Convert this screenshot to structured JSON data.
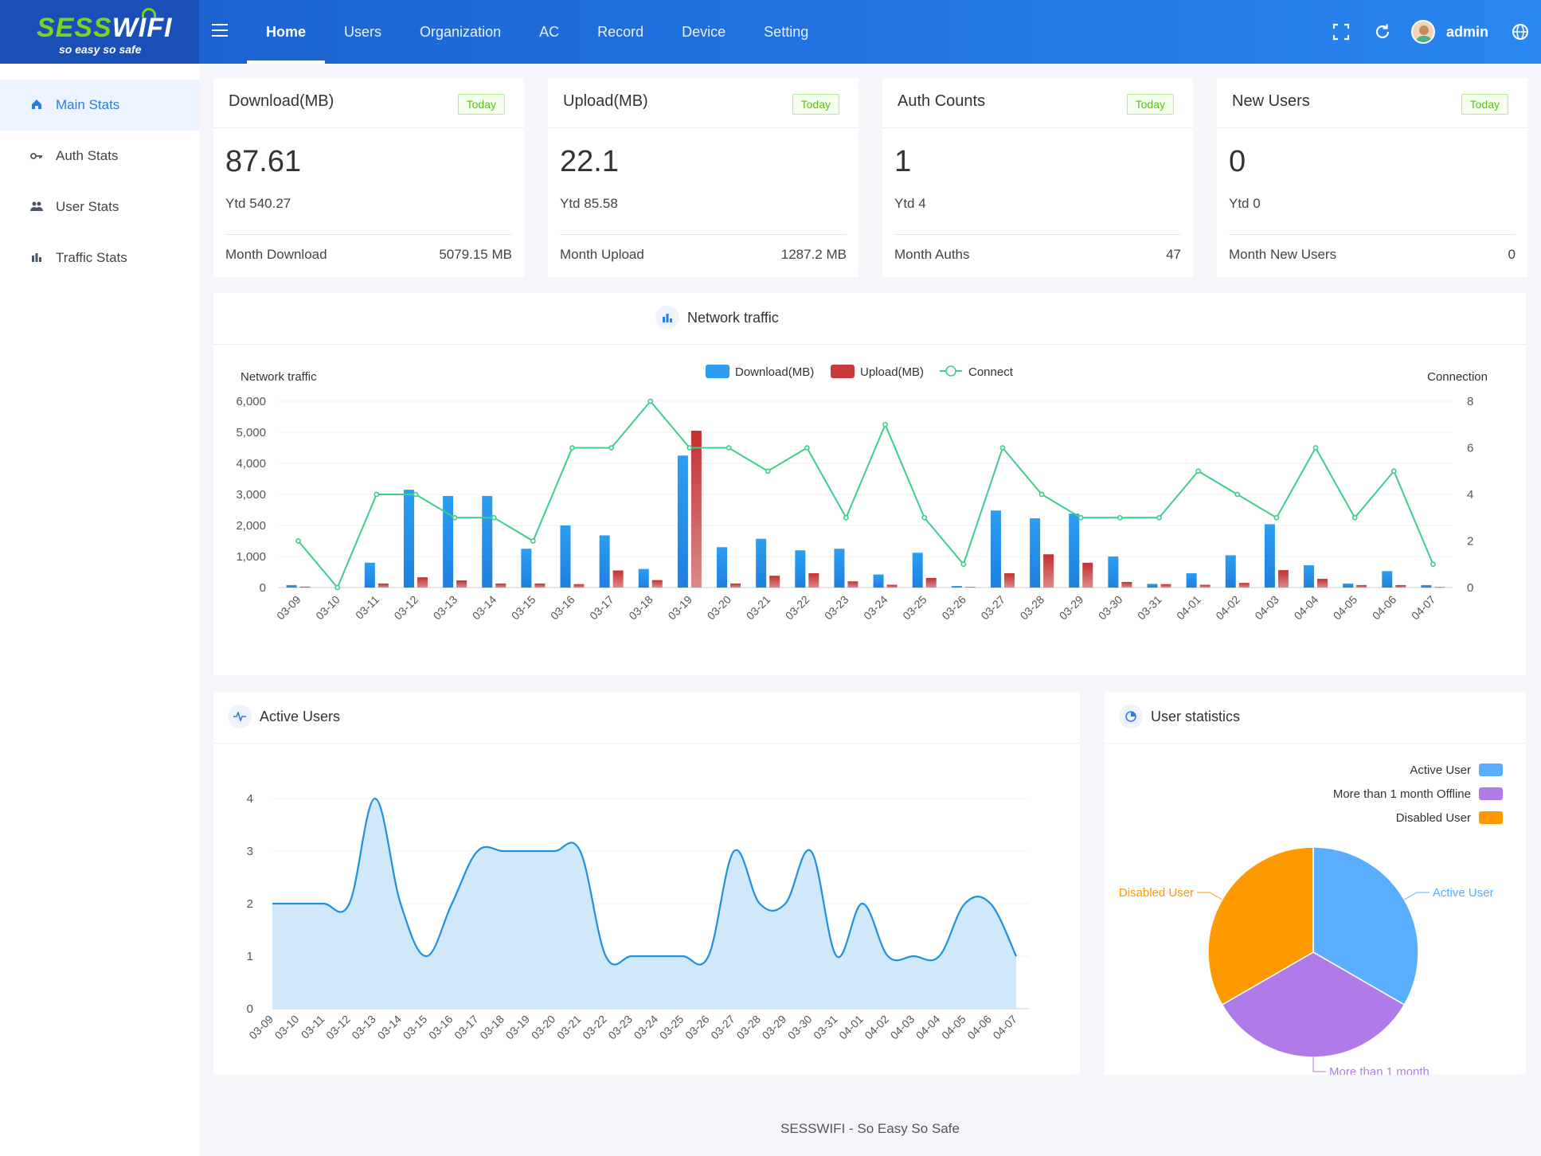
{
  "header": {
    "brand_part1": "SESS",
    "brand_part2": "WIFI",
    "tagline": "so easy so safe",
    "nav": [
      "Home",
      "Users",
      "Organization",
      "AC",
      "Record",
      "Device",
      "Setting"
    ],
    "active_nav": "Home",
    "username": "admin"
  },
  "sidebar": {
    "items": [
      {
        "label": "Main Stats",
        "icon": "home-icon",
        "active": true
      },
      {
        "label": "Auth Stats",
        "icon": "key-icon",
        "active": false
      },
      {
        "label": "User Stats",
        "icon": "users-icon",
        "active": false
      },
      {
        "label": "Traffic Stats",
        "icon": "bar-chart-icon",
        "active": false
      }
    ]
  },
  "stats": [
    {
      "title": "Download(MB)",
      "badge": "Today",
      "value": "87.61",
      "ytd": "Ytd 540.27",
      "month_label": "Month Download",
      "month_value": "5079.15 MB"
    },
    {
      "title": "Upload(MB)",
      "badge": "Today",
      "value": "22.1",
      "ytd": "Ytd 85.58",
      "month_label": "Month Upload",
      "month_value": "1287.2 MB"
    },
    {
      "title": "Auth Counts",
      "badge": "Today",
      "value": "1",
      "ytd": "Ytd 4",
      "month_label": "Month Auths",
      "month_value": "47"
    },
    {
      "title": "New Users",
      "badge": "Today",
      "value": "0",
      "ytd": "Ytd 0",
      "month_label": "Month New Users",
      "month_value": "0"
    }
  ],
  "traffic_panel": {
    "title": "Network traffic"
  },
  "active_panel": {
    "title": "Active Users"
  },
  "user_panel": {
    "title": "User statistics"
  },
  "footer": "SESSWIFI - So Easy So Safe",
  "colors": {
    "download": "#2e9cf0",
    "upload": "#c9383a",
    "connect": "#3ccf8a",
    "active_area": "#d1e8fa",
    "active_line": "#1f8fe0",
    "pie_active": "#5aaeff",
    "pie_offline": "#b07be8",
    "pie_disabled": "#ff9900"
  },
  "chart_data": [
    {
      "type": "bar",
      "title": "",
      "left_axis_label": "Network traffic",
      "right_axis_label": "Connection",
      "ylim": [
        0,
        6000
      ],
      "y2lim": [
        0,
        8
      ],
      "yticks": [
        0,
        1000,
        2000,
        3000,
        4000,
        5000,
        6000
      ],
      "y2ticks": [
        0,
        2,
        4,
        6,
        8
      ],
      "legend_position": "top-center",
      "categories": [
        "03-09",
        "03-10",
        "03-11",
        "03-12",
        "03-13",
        "03-14",
        "03-15",
        "03-16",
        "03-17",
        "03-18",
        "03-19",
        "03-20",
        "03-21",
        "03-22",
        "03-23",
        "03-24",
        "03-25",
        "03-26",
        "03-27",
        "03-28",
        "03-29",
        "03-30",
        "03-31",
        "04-01",
        "04-02",
        "04-03",
        "04-04",
        "04-05",
        "04-06",
        "04-07"
      ],
      "series": [
        {
          "name": "Download(MB)",
          "kind": "bar",
          "axis": "left",
          "values": [
            80,
            0,
            800,
            3150,
            2950,
            2950,
            1250,
            2000,
            1680,
            600,
            4250,
            1300,
            1570,
            1200,
            1250,
            420,
            1120,
            50,
            2480,
            2230,
            2380,
            1000,
            120,
            460,
            1040,
            2040,
            720,
            130,
            530,
            80
          ]
        },
        {
          "name": "Upload(MB)",
          "kind": "bar",
          "axis": "left",
          "values": [
            30,
            0,
            130,
            330,
            230,
            130,
            130,
            110,
            550,
            240,
            5050,
            130,
            380,
            460,
            200,
            90,
            310,
            20,
            460,
            1070,
            800,
            180,
            110,
            90,
            150,
            560,
            280,
            80,
            80,
            20
          ]
        },
        {
          "name": "Connect",
          "kind": "line",
          "axis": "right",
          "values": [
            2,
            0,
            4,
            4,
            3,
            3,
            2,
            6,
            6,
            8,
            6,
            6,
            5,
            6,
            3,
            7,
            3,
            1,
            6,
            4,
            3,
            3,
            3,
            5,
            4,
            3,
            6,
            3,
            5,
            1
          ]
        }
      ]
    },
    {
      "type": "area",
      "title": "",
      "ylim": [
        0,
        4
      ],
      "yticks": [
        0,
        1,
        2,
        3,
        4
      ],
      "categories": [
        "03-09",
        "03-10",
        "03-11",
        "03-12",
        "03-13",
        "03-14",
        "03-15",
        "03-16",
        "03-17",
        "03-18",
        "03-19",
        "03-20",
        "03-21",
        "03-22",
        "03-23",
        "03-24",
        "03-25",
        "03-26",
        "03-27",
        "03-28",
        "03-29",
        "03-30",
        "03-31",
        "04-01",
        "04-02",
        "04-03",
        "04-04",
        "04-05",
        "04-06",
        "04-07"
      ],
      "values": [
        2,
        2,
        2,
        2,
        4,
        2,
        1,
        2,
        3,
        3,
        3,
        3,
        3,
        1,
        1,
        1,
        1,
        1,
        3,
        2,
        2,
        3,
        1,
        2,
        1,
        1,
        1,
        2,
        2,
        1
      ]
    },
    {
      "type": "pie",
      "title": "",
      "legend_position": "top-right",
      "slices": [
        {
          "label": "Active User",
          "legend": "Active User",
          "value": 1
        },
        {
          "label": "More than 1 month",
          "legend": "More than 1 month Offline",
          "value": 1
        },
        {
          "label": "Disabled User",
          "legend": "Disabled User",
          "value": 1
        }
      ]
    }
  ]
}
